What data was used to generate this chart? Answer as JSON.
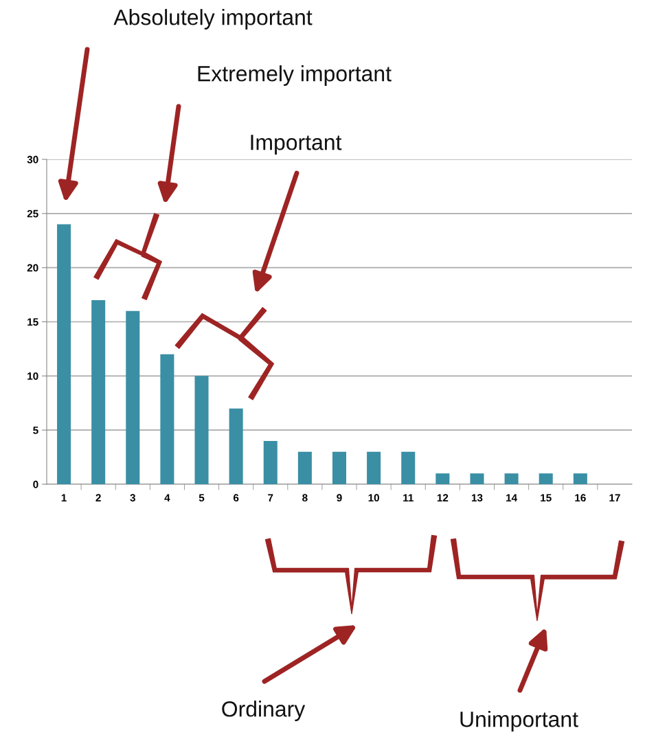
{
  "chart_data": {
    "type": "bar",
    "categories": [
      "1",
      "2",
      "3",
      "4",
      "5",
      "6",
      "7",
      "8",
      "9",
      "10",
      "11",
      "12",
      "13",
      "14",
      "15",
      "16",
      "17"
    ],
    "values": [
      24,
      17,
      16,
      12,
      10,
      7,
      4,
      3,
      3,
      3,
      3,
      1,
      1,
      1,
      1,
      1,
      null
    ],
    "color": "#3a8fa5",
    "ylim": [
      0,
      30
    ],
    "yticks": [
      0,
      5,
      10,
      15,
      20,
      25,
      30
    ],
    "grid": "y",
    "annotations": [
      "Absolutely important",
      "Extremely important",
      "Important",
      "Ordinary",
      "Unimportant"
    ]
  }
}
